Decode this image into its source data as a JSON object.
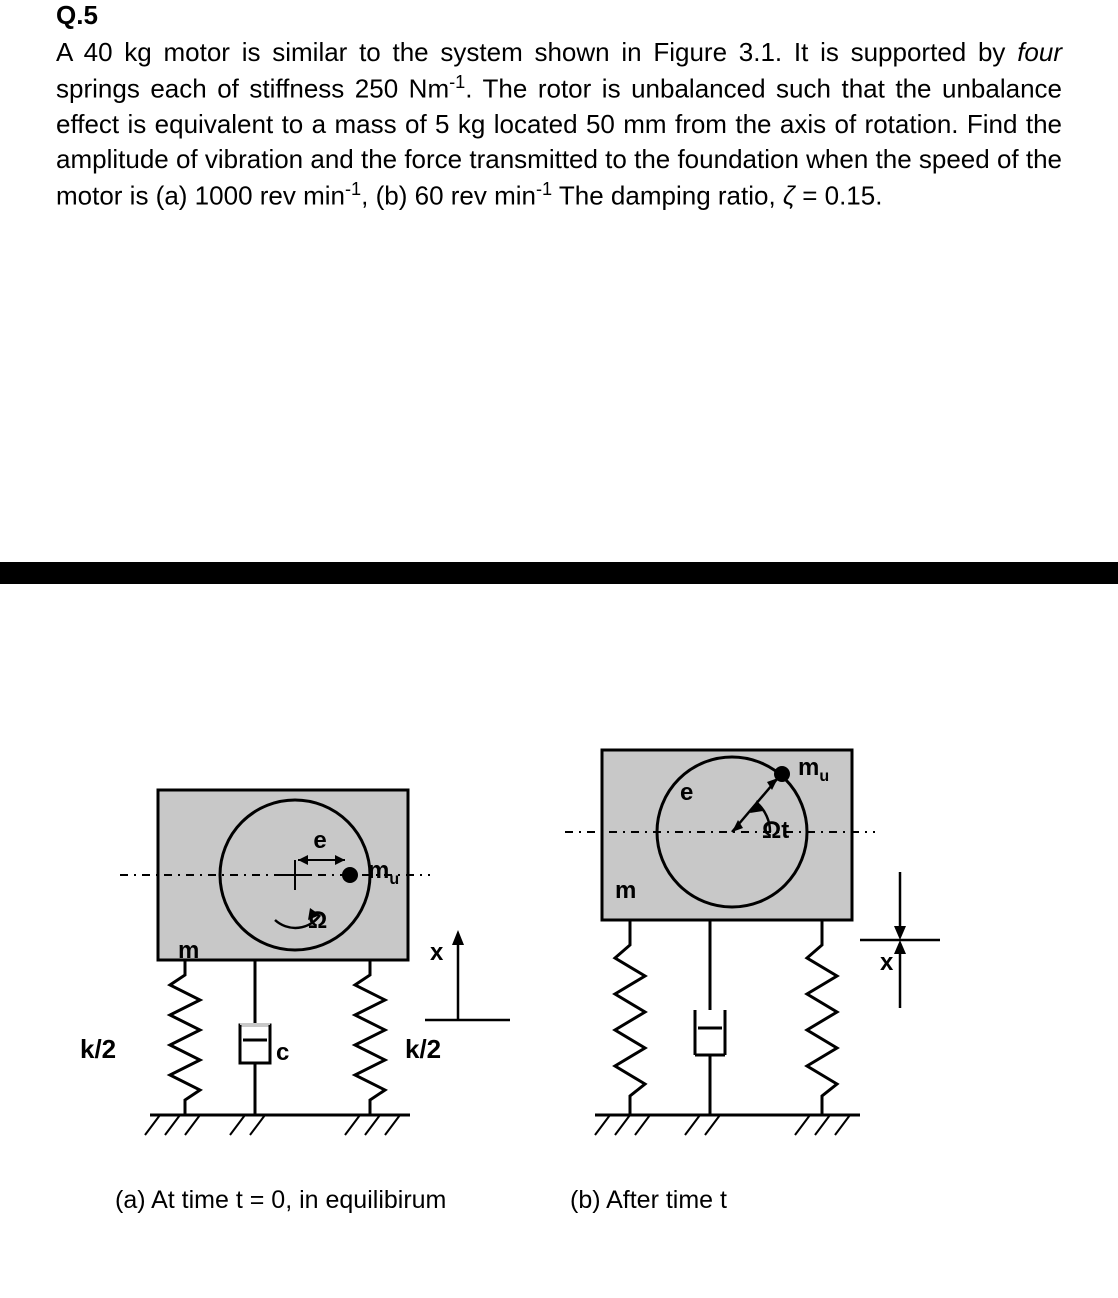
{
  "question_number": "Q.5",
  "problem_html": "A 40 kg motor is similar to the system shown in Figure 3.1.  It is supported by <em>four</em> springs each of stiffness 250 Nm<sup>-1</sup>.  The rotor is unbalanced such that the unbalance effect is equivalent to a mass of 5 kg located 50 mm from the axis of rotation. Find the amplitude of vibration and the force transmitted to the foundation when the speed of the motor is (a) 1000 rev min<sup>-1</sup>, (b) 60 rev min<sup>-1</sup> The damping ratio, <em>ζ</em> = 0.15.",
  "figure": {
    "diagram_a": {
      "box_fill": "#c8c8c8",
      "stroke": "#000000",
      "labels": {
        "e": "e",
        "mu": "mᵤ",
        "omega": "Ω",
        "m": "m",
        "c": "c",
        "k_left": "k/2",
        "k_right": "k/2",
        "x": "x"
      },
      "caption": "(a)  At time t = 0, in equilibirum"
    },
    "diagram_b": {
      "box_fill": "#c8c8c8",
      "stroke": "#000000",
      "labels": {
        "e": "e",
        "mu": "mᵤ",
        "omega_t": "Ωt",
        "m": "m",
        "x": "x"
      },
      "caption": "(b)  After time t"
    },
    "style": {
      "stroke_width_thin": 2,
      "stroke_width_thick": 3,
      "font_size_label": 24,
      "font_size_caption": 25,
      "font_family": "Arial"
    }
  }
}
